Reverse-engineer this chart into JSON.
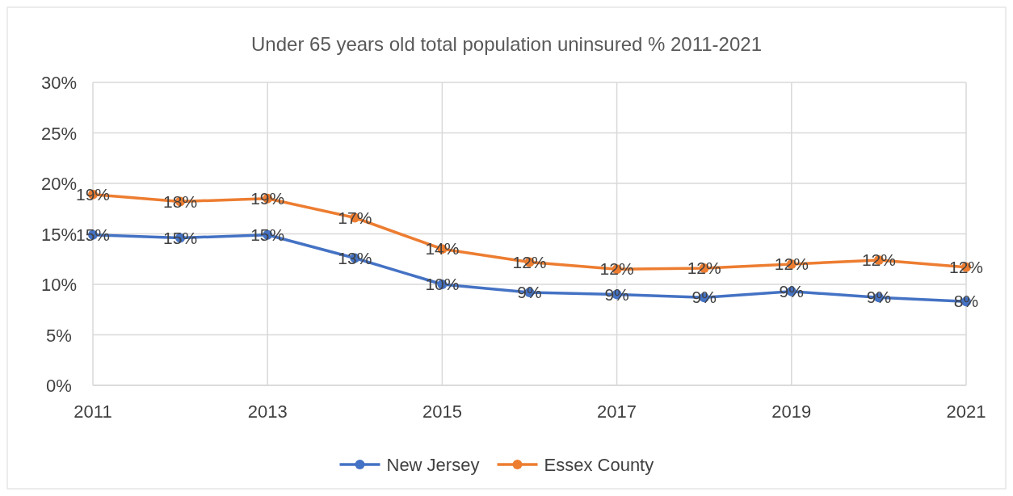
{
  "chart_data": {
    "type": "line",
    "title": "Under 65 years old total population uninsured % 2011-2021",
    "x": [
      2011,
      2012,
      2013,
      2014,
      2015,
      2016,
      2017,
      2018,
      2019,
      2020,
      2021
    ],
    "series": [
      {
        "name": "New Jersey",
        "color": "#4472c4",
        "values": [
          14.9,
          14.6,
          14.9,
          12.6,
          10.0,
          9.2,
          9.0,
          8.7,
          9.3,
          8.7,
          8.3
        ],
        "value_labels": [
          "15%",
          "15%",
          "15%",
          "13%",
          "10%",
          "9%",
          "9%",
          "9%",
          "9%",
          "9%",
          "8%"
        ]
      },
      {
        "name": "Essex County",
        "color": "#ed7d31",
        "values": [
          18.9,
          18.2,
          18.5,
          16.6,
          13.5,
          12.2,
          11.5,
          11.6,
          12.0,
          12.4,
          11.7
        ],
        "value_labels": [
          "19%",
          "18%",
          "19%",
          "17%",
          "14%",
          "12%",
          "12%",
          "12%",
          "12%",
          "12%",
          "12%"
        ]
      }
    ],
    "xlim": [
      2011,
      2021
    ],
    "xticks": [
      2011,
      2013,
      2015,
      2017,
      2019,
      2021
    ],
    "ylim": [
      0,
      30
    ],
    "yticks": [
      {
        "value": 0,
        "label": "0%"
      },
      {
        "value": 5,
        "label": "5%"
      },
      {
        "value": 10,
        "label": "10%"
      },
      {
        "value": 15,
        "label": "15%"
      },
      {
        "value": 20,
        "label": "20%"
      },
      {
        "value": 25,
        "label": "25%"
      },
      {
        "value": 30,
        "label": "30%"
      }
    ],
    "grid": true,
    "legend": "bottom",
    "marker": "circle",
    "line_style": "solid"
  }
}
